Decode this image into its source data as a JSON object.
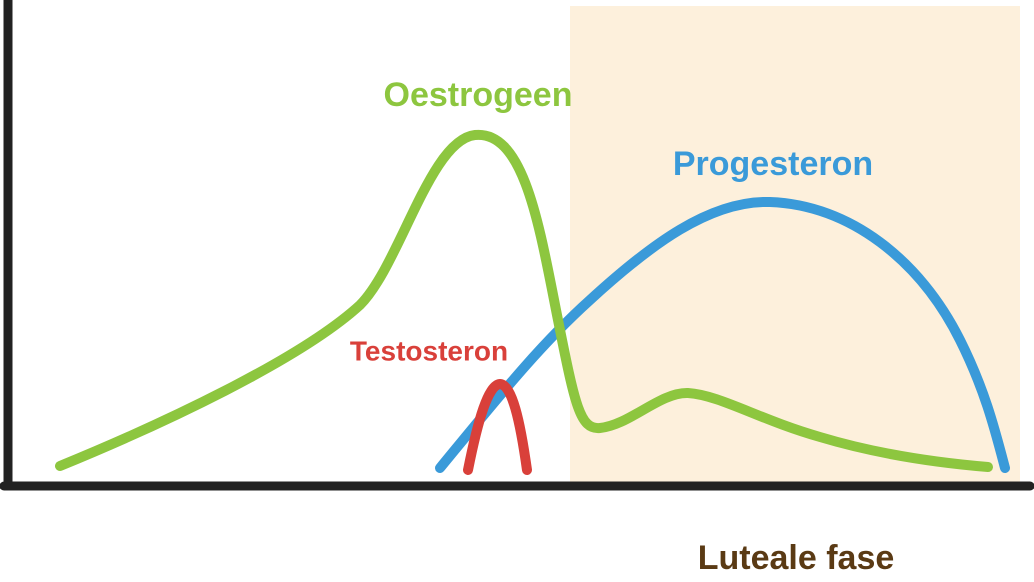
{
  "curves": [
    {
      "label": "Oestrogeen"
    },
    {
      "label": "Progesteron"
    },
    {
      "label": "Testosteron"
    }
  ],
  "phase": {
    "label": "Luteale fase"
  }
}
